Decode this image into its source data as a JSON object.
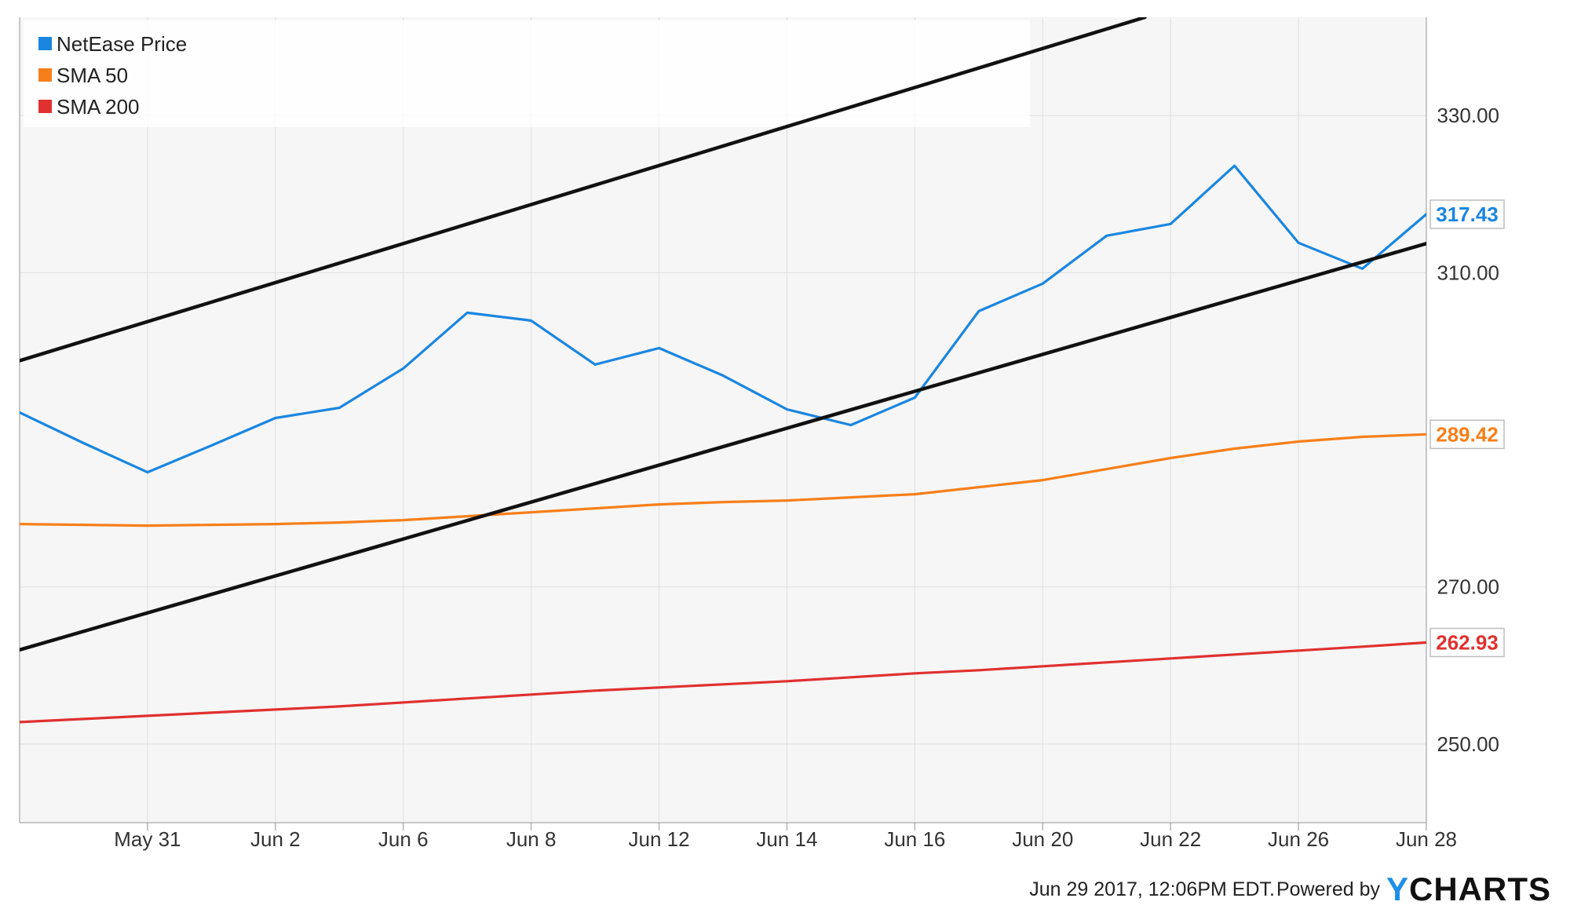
{
  "chart_data": {
    "type": "line",
    "x": [
      "May 29",
      "May 30",
      "May 31",
      "Jun 1",
      "Jun 2",
      "Jun 5",
      "Jun 6",
      "Jun 7",
      "Jun 8",
      "Jun 9",
      "Jun 12",
      "Jun 13",
      "Jun 14",
      "Jun 15",
      "Jun 16",
      "Jun 19",
      "Jun 20",
      "Jun 21",
      "Jun 22",
      "Jun 23",
      "Jun 26",
      "Jun 27",
      "Jun 28"
    ],
    "x_tick_labels": [
      "May 31",
      "Jun 2",
      "Jun 6",
      "Jun 8",
      "Jun 12",
      "Jun 14",
      "Jun 16",
      "Jun 20",
      "Jun 22",
      "Jun 26",
      "Jun 28"
    ],
    "x_tick_indices": [
      2,
      4,
      6,
      8,
      10,
      12,
      14,
      16,
      18,
      20,
      22
    ],
    "y_ticks": [
      250,
      270,
      310,
      330
    ],
    "y_tick_labels": [
      "250.00",
      "270.00",
      "310.00",
      "330.00"
    ],
    "ylim": [
      240,
      342.5
    ],
    "grid": true,
    "legend_position": "top-left",
    "series": [
      {
        "name": "NetEase Price",
        "color": "#1a86e0",
        "values": [
          292.2,
          288.3,
          284.6,
          288.0,
          291.5,
          292.8,
          297.8,
          304.9,
          303.9,
          298.3,
          300.4,
          296.9,
          292.6,
          290.6,
          294.1,
          305.1,
          308.6,
          314.7,
          316.2,
          323.6,
          313.8,
          310.5,
          317.43
        ]
      },
      {
        "name": "SMA 50",
        "color": "#f77f1a",
        "values": [
          278.0,
          277.9,
          277.8,
          277.9,
          278.0,
          278.2,
          278.5,
          279.0,
          279.5,
          280.0,
          280.5,
          280.8,
          281.0,
          281.4,
          281.8,
          282.7,
          283.6,
          285.0,
          286.4,
          287.6,
          288.5,
          289.1,
          289.42
        ]
      },
      {
        "name": "SMA 200",
        "color": "#e03030",
        "values": [
          252.8,
          253.2,
          253.6,
          254.0,
          254.4,
          254.8,
          255.3,
          255.8,
          256.3,
          256.8,
          257.2,
          257.6,
          258.0,
          258.5,
          259.0,
          259.4,
          259.9,
          260.4,
          260.9,
          261.4,
          261.9,
          262.4,
          262.93
        ]
      }
    ],
    "last_values": [
      "317.43",
      "289.42",
      "262.93"
    ],
    "trendlines": [
      {
        "color": "#111111",
        "start": {
          "x": 0,
          "y": 298.8
        },
        "end": {
          "x": 17.6,
          "y": 342.5
        }
      },
      {
        "color": "#111111",
        "start": {
          "x": 0,
          "y": 262.0
        },
        "end": {
          "x": 22,
          "y": 313.7
        }
      }
    ]
  },
  "footer": {
    "timestamp": "Jun 29 2017, 12:06PM EDT.",
    "powered_by": "Powered by",
    "logo_y": "Y",
    "logo_rest": "CHARTS"
  }
}
